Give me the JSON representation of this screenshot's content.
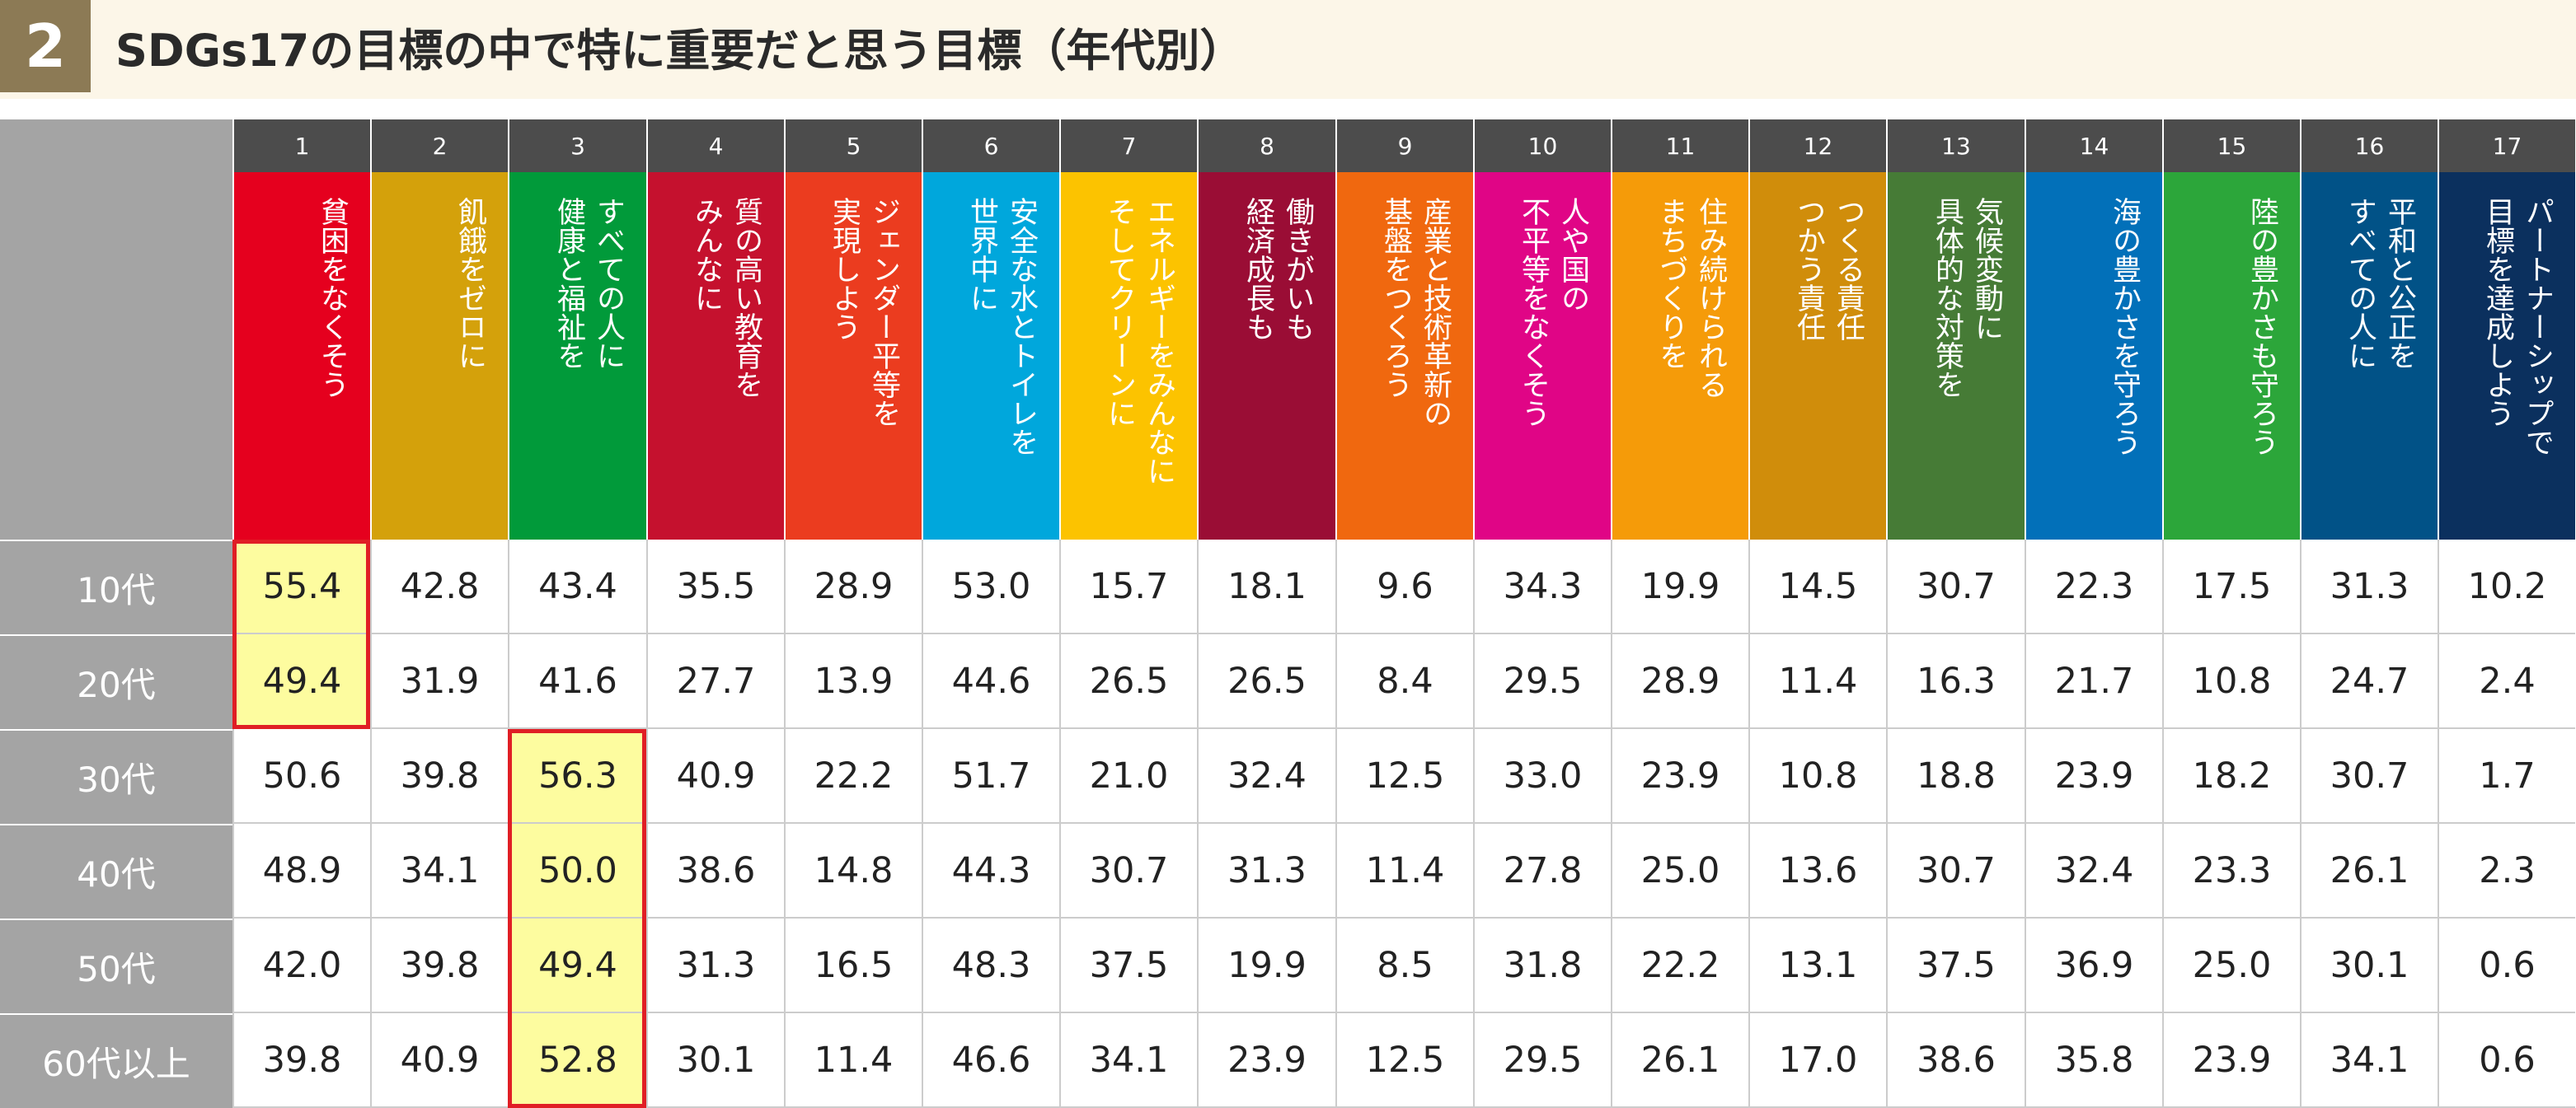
{
  "header": {
    "number": "2",
    "title": "SDGs17の目標の中で特に重要だと思う目標（年代別）"
  },
  "chart_data": {
    "type": "table",
    "columns": [
      {
        "num": "1",
        "label": "貧困をなくそう",
        "color": "#e5001e"
      },
      {
        "num": "2",
        "label": "飢餓をゼロに",
        "color": "#d4a10b"
      },
      {
        "num": "3",
        "label": "すべての人に\n健康と福祉を",
        "color": "#019a3a"
      },
      {
        "num": "4",
        "label": "質の高い教育を\nみんなに",
        "color": "#c5112e"
      },
      {
        "num": "5",
        "label": "ジェンダー平等を\n実現しよう",
        "color": "#eb3c1f"
      },
      {
        "num": "6",
        "label": "安全な水とトイレを\n世界中に",
        "color": "#00a7dc"
      },
      {
        "num": "7",
        "label": "エネルギーをみんなに\nそしてクリーンに",
        "color": "#fcc300"
      },
      {
        "num": "8",
        "label": "働きがいも\n経済成長も",
        "color": "#9a0d35"
      },
      {
        "num": "9",
        "label": "産業と技術革新の\n基盤をつくろう",
        "color": "#f0680f"
      },
      {
        "num": "10",
        "label": "人や国の\n不平等をなくそう",
        "color": "#e00586"
      },
      {
        "num": "11",
        "label": "住み続けられる\nまちづくりを",
        "color": "#f59b09"
      },
      {
        "num": "12",
        "label": "つくる責任\nつかう責任",
        "color": "#d08d0b"
      },
      {
        "num": "13",
        "label": "気候変動に\n具体的な対策を",
        "color": "#467b36"
      },
      {
        "num": "14",
        "label": "海の豊かさを守ろう",
        "color": "#0270b9"
      },
      {
        "num": "15",
        "label": "陸の豊かさも守ろう",
        "color": "#2ca63a"
      },
      {
        "num": "16",
        "label": "平和と公正を\nすべての人に",
        "color": "#015287"
      },
      {
        "num": "17",
        "label": "パートナーシップで\n目標を達成しよう",
        "color": "#0b305e"
      }
    ],
    "rows": [
      {
        "label": "10代",
        "values": [
          "55.4",
          "42.8",
          "43.4",
          "35.5",
          "28.9",
          "53.0",
          "15.7",
          "18.1",
          "9.6",
          "34.3",
          "19.9",
          "14.5",
          "30.7",
          "22.3",
          "17.5",
          "31.3",
          "10.2"
        ]
      },
      {
        "label": "20代",
        "values": [
          "49.4",
          "31.9",
          "41.6",
          "27.7",
          "13.9",
          "44.6",
          "26.5",
          "26.5",
          "8.4",
          "29.5",
          "28.9",
          "11.4",
          "16.3",
          "21.7",
          "10.8",
          "24.7",
          "2.4"
        ]
      },
      {
        "label": "30代",
        "values": [
          "50.6",
          "39.8",
          "56.3",
          "40.9",
          "22.2",
          "51.7",
          "21.0",
          "32.4",
          "12.5",
          "33.0",
          "23.9",
          "10.8",
          "18.8",
          "23.9",
          "18.2",
          "30.7",
          "1.7"
        ]
      },
      {
        "label": "40代",
        "values": [
          "48.9",
          "34.1",
          "50.0",
          "38.6",
          "14.8",
          "44.3",
          "30.7",
          "31.3",
          "11.4",
          "27.8",
          "25.0",
          "13.6",
          "30.7",
          "32.4",
          "23.3",
          "26.1",
          "2.3"
        ]
      },
      {
        "label": "50代",
        "values": [
          "42.0",
          "39.8",
          "49.4",
          "31.3",
          "16.5",
          "48.3",
          "37.5",
          "19.9",
          "8.5",
          "31.8",
          "22.2",
          "13.1",
          "37.5",
          "36.9",
          "25.0",
          "30.1",
          "0.6"
        ]
      },
      {
        "label": "60代以上",
        "values": [
          "39.8",
          "40.9",
          "52.8",
          "30.1",
          "11.4",
          "46.6",
          "34.1",
          "23.9",
          "12.5",
          "29.5",
          "26.1",
          "17.0",
          "38.6",
          "35.8",
          "23.9",
          "34.1",
          "0.6"
        ]
      }
    ],
    "highlights": [
      {
        "column": 0,
        "rows": [
          0,
          1
        ]
      },
      {
        "column": 2,
        "rows": [
          2,
          3,
          4,
          5
        ]
      }
    ],
    "highlight_colors": {
      "fill": "#fdfc9f",
      "border": "#e01e25"
    }
  }
}
